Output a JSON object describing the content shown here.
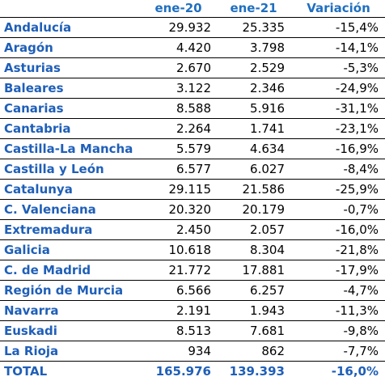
{
  "header": {
    "col_name": "",
    "col_v20": "ene-20",
    "col_v21": "ene-21",
    "col_var": "Variación"
  },
  "rows": [
    {
      "name": "Andalucía",
      "v20": "29.932",
      "v21": "25.335",
      "var": "-15,4%"
    },
    {
      "name": "Aragón",
      "v20": "4.420",
      "v21": "3.798",
      "var": "-14,1%"
    },
    {
      "name": "Asturias",
      "v20": "2.670",
      "v21": "2.529",
      "var": "-5,3%"
    },
    {
      "name": "Baleares",
      "v20": "3.122",
      "v21": "2.346",
      "var": "-24,9%"
    },
    {
      "name": "Canarias",
      "v20": "8.588",
      "v21": "5.916",
      "var": "-31,1%"
    },
    {
      "name": "Cantabria",
      "v20": "2.264",
      "v21": "1.741",
      "var": "-23,1%"
    },
    {
      "name": "Castilla-La Mancha",
      "v20": "5.579",
      "v21": "4.634",
      "var": "-16,9%"
    },
    {
      "name": "Castilla y León",
      "v20": "6.577",
      "v21": "6.027",
      "var": "-8,4%"
    },
    {
      "name": "Catalunya",
      "v20": "29.115",
      "v21": "21.586",
      "var": "-25,9%"
    },
    {
      "name": "C. Valenciana",
      "v20": "20.320",
      "v21": "20.179",
      "var": "-0,7%"
    },
    {
      "name": "Extremadura",
      "v20": "2.450",
      "v21": "2.057",
      "var": "-16,0%"
    },
    {
      "name": "Galicia",
      "v20": "10.618",
      "v21": "8.304",
      "var": "-21,8%"
    },
    {
      "name": "C. de Madrid",
      "v20": "21.772",
      "v21": "17.881",
      "var": "-17,9%"
    },
    {
      "name": "Región de Murcia",
      "v20": "6.566",
      "v21": "6.257",
      "var": "-4,7%"
    },
    {
      "name": "Navarra",
      "v20": "2.191",
      "v21": "1.943",
      "var": "-11,3%"
    },
    {
      "name": "Euskadi",
      "v20": "8.513",
      "v21": "7.681",
      "var": "-9,8%"
    },
    {
      "name": "La Rioja",
      "v20": "934",
      "v21": "862",
      "var": "-7,7%"
    }
  ],
  "total": {
    "name": "TOTAL",
    "v20": "165.976",
    "v21": "139.393",
    "var": "-16,0%"
  },
  "colors": {
    "label_blue": "#1f5fb8",
    "header_blue": "#1f6fc0",
    "grid_line": "#000000"
  }
}
